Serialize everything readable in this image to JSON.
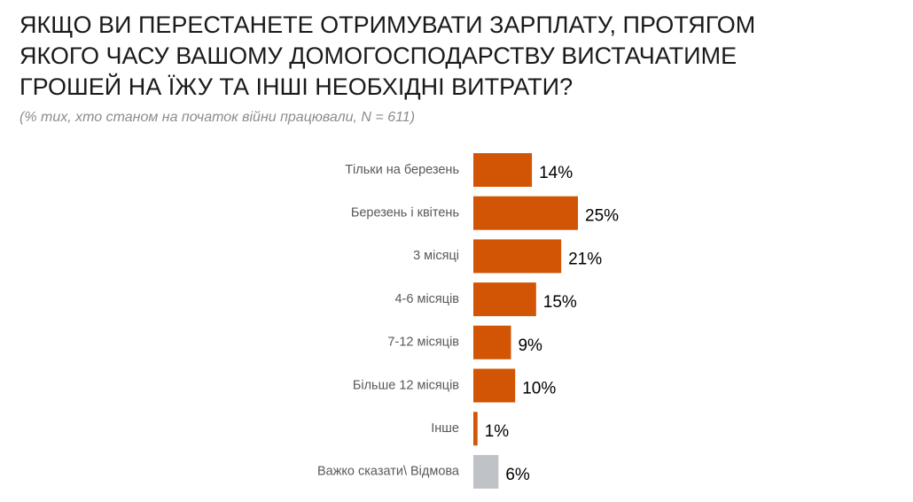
{
  "chart_data": {
    "type": "bar",
    "orientation": "horizontal",
    "title": [
      "ЯКЩО ВИ ПЕРЕСТАНЕТЕ ОТРИМУВАТИ ЗАРПЛАТУ, ПРОТЯГОМ",
      "ЯКОГО ЧАСУ ВАШОМУ ДОМОГОСПОДАРСТВУ ВИСТАЧАТИМЕ",
      "ГРОШЕЙ НА ЇЖУ ТА ІНШІ НЕОБХІДНІ ВИТРАТИ?"
    ],
    "subtitle": "(% тих, хто станом на початок війни працювали, N = 611)",
    "categories": [
      "Тільки на березень",
      "Березень і квітень",
      "3 місяці",
      "4-6 місяців",
      "7-12 місяців",
      "Більше 12 місяців",
      "Інше",
      "Важко сказати\\ Відмова"
    ],
    "values": [
      14,
      25,
      21,
      15,
      9,
      10,
      1,
      6
    ],
    "value_labels": [
      "14%",
      "25%",
      "21%",
      "15%",
      "9%",
      "10%",
      "1%",
      "6%"
    ],
    "colors": [
      "#d15505",
      "#d15505",
      "#d15505",
      "#d15505",
      "#d15505",
      "#d15505",
      "#d15505",
      "#bfc3c7"
    ]
  }
}
